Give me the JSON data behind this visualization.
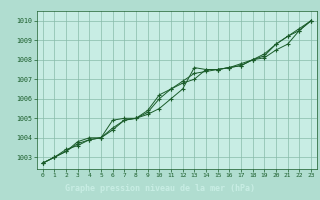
{
  "title": "Graphe pression niveau de la mer (hPa)",
  "bg_color": "#b0ddd0",
  "plot_bg_color": "#c8ede4",
  "title_bg_color": "#2d6e3e",
  "title_fg_color": "#c8ede4",
  "grid_color": "#88bbaa",
  "line_color": "#1a5c2a",
  "marker_color": "#1a5c2a",
  "xlim": [
    -0.5,
    23.5
  ],
  "ylim": [
    1002.4,
    1010.5
  ],
  "yticks": [
    1003,
    1004,
    1005,
    1006,
    1007,
    1008,
    1009,
    1010
  ],
  "xticks": [
    0,
    1,
    2,
    3,
    4,
    5,
    6,
    7,
    8,
    9,
    10,
    11,
    12,
    13,
    14,
    15,
    16,
    17,
    18,
    19,
    20,
    21,
    22,
    23
  ],
  "series1_x": [
    0,
    1,
    2,
    3,
    4,
    5,
    6,
    7,
    8,
    9,
    10,
    11,
    12,
    13,
    14,
    15,
    16,
    17,
    18,
    19,
    20,
    21,
    22,
    23
  ],
  "series1_y": [
    1002.7,
    1003.0,
    1003.3,
    1003.7,
    1003.9,
    1004.0,
    1004.4,
    1004.9,
    1005.0,
    1005.2,
    1005.5,
    1006.0,
    1006.5,
    1007.6,
    1007.5,
    1007.5,
    1007.6,
    1007.7,
    1008.0,
    1008.1,
    1008.5,
    1008.8,
    1009.5,
    1010.0
  ],
  "series2_x": [
    0,
    1,
    2,
    3,
    4,
    5,
    6,
    7,
    8,
    9,
    10,
    11,
    12,
    13,
    14,
    15,
    16,
    17,
    18,
    19,
    20,
    21,
    22,
    23
  ],
  "series2_y": [
    1002.7,
    1003.0,
    1003.3,
    1003.8,
    1004.0,
    1004.0,
    1004.9,
    1005.0,
    1005.0,
    1005.3,
    1006.0,
    1006.5,
    1006.9,
    1007.3,
    1007.4,
    1007.5,
    1007.6,
    1007.7,
    1008.0,
    1008.2,
    1008.8,
    1009.2,
    1009.5,
    1010.0
  ],
  "series3_x": [
    0,
    1,
    2,
    3,
    4,
    5,
    6,
    7,
    8,
    9,
    10,
    11,
    12,
    13,
    14,
    15,
    16,
    17,
    18,
    19,
    20,
    21,
    22,
    23
  ],
  "series3_y": [
    1002.7,
    1003.0,
    1003.4,
    1003.6,
    1003.9,
    1004.0,
    1004.5,
    1004.9,
    1005.0,
    1005.4,
    1006.2,
    1006.5,
    1006.8,
    1007.0,
    1007.5,
    1007.5,
    1007.6,
    1007.8,
    1008.0,
    1008.3,
    1008.8,
    1009.2,
    1009.6,
    1010.0
  ]
}
